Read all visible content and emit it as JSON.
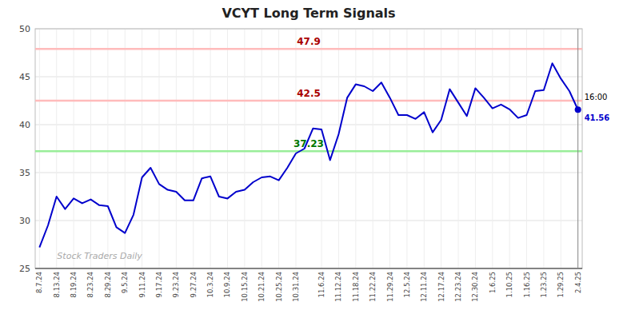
{
  "chart_data": {
    "type": "line",
    "title": "VCYT Long Term Signals",
    "categories": [
      "8.7.24",
      null,
      "8.13.24",
      null,
      "8.19.24",
      null,
      "8.23.24",
      null,
      "8.29.24",
      null,
      "9.5.24",
      null,
      "9.11.24",
      null,
      "9.17.24",
      null,
      "9.23.24",
      null,
      "9.27.24",
      null,
      "10.3.24",
      null,
      "10.9.24",
      null,
      "10.15.24",
      null,
      "10.21.24",
      null,
      "10.25.24",
      null,
      "10.31.24",
      null,
      null,
      "11.6.24",
      null,
      "11.12.24",
      null,
      "11.18.24",
      null,
      "11.22.24",
      null,
      "11.29.24",
      null,
      "12.5.24",
      null,
      "12.11.24",
      null,
      "12.17.24",
      null,
      "12.23.24",
      null,
      "12.30.24",
      null,
      "1.6.25",
      null,
      "1.10.25",
      null,
      "1.16.25",
      null,
      "1.23.25",
      null,
      "1.29.25",
      null,
      "2.4.25"
    ],
    "values": [
      27.2,
      29.5,
      32.5,
      31.2,
      32.3,
      31.8,
      32.2,
      31.6,
      31.5,
      29.3,
      28.7,
      30.6,
      34.5,
      35.5,
      33.8,
      33.2,
      33.0,
      32.1,
      32.1,
      34.4,
      34.6,
      32.5,
      32.3,
      33.0,
      33.2,
      34.0,
      34.5,
      34.6,
      34.2,
      35.5,
      37.0,
      37.5,
      39.6,
      39.5,
      36.3,
      39.0,
      42.8,
      44.2,
      44.0,
      43.5,
      44.4,
      42.8,
      41.0,
      41.0,
      40.6,
      41.3,
      39.2,
      40.5,
      43.7,
      42.3,
      40.9,
      43.8,
      42.8,
      41.7,
      42.1,
      41.6,
      40.7,
      41.0,
      43.5,
      43.6,
      46.4,
      44.8,
      43.5,
      41.56
    ],
    "color": "#0000cc",
    "ylim": [
      25,
      50
    ],
    "yticks": [
      25,
      30,
      35,
      40,
      45,
      50
    ],
    "grid": true,
    "hlines": [
      {
        "value": 47.9,
        "text": "47.9",
        "color": "#ffbbbb",
        "label_color": "#aa0000"
      },
      {
        "value": 42.5,
        "text": "42.5",
        "color": "#ffbbbb",
        "label_color": "#aa0000"
      },
      {
        "value": 37.23,
        "text": "37.23",
        "color": "#99ee99",
        "label_color": "#007700"
      }
    ],
    "last_point": {
      "text": "16:00",
      "label": "41.56",
      "value": 41.56,
      "color": "#0000cc"
    },
    "watermark": "Stock Traders Daily"
  }
}
